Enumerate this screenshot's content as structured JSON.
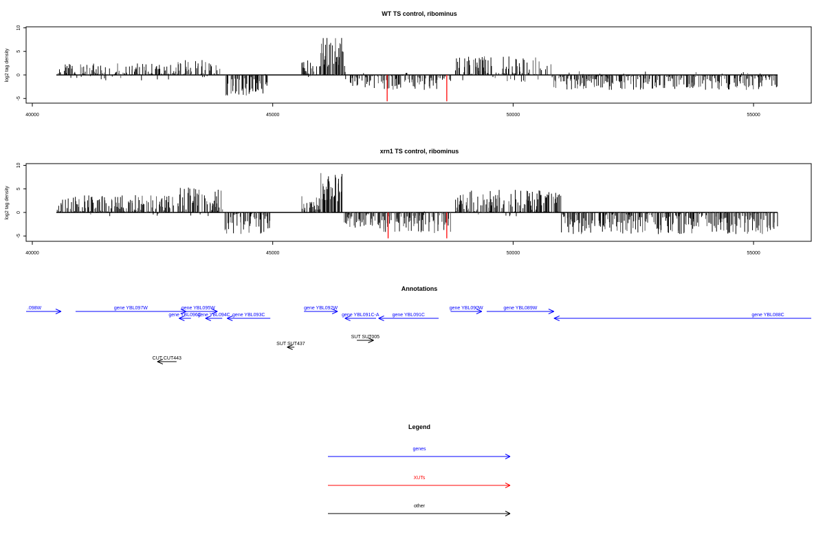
{
  "panels": [
    {
      "title": "WT TS control, ribominus",
      "ylabel": "log2 tag density",
      "yticks": [
        "10",
        "5",
        "0",
        "-5"
      ],
      "xticks": [
        "40000",
        "45000",
        "50000",
        "55000"
      ]
    },
    {
      "title": "xrn1 TS control, ribominus",
      "ylabel": "log2 tag density",
      "yticks": [
        "10",
        "5",
        "0",
        "-5"
      ],
      "xticks": [
        "40000",
        "45000",
        "50000",
        "55000"
      ]
    }
  ],
  "annotations": {
    "title": "Annotations",
    "genes": [
      {
        "label": ".098W",
        "start": 39400,
        "end": 40600,
        "dir": "+"
      },
      {
        "label": "gene YBL097W",
        "start": 40900,
        "end": 43200,
        "dir": "+"
      },
      {
        "label": "gene YBL095W",
        "start": 43050,
        "end": 43850,
        "dir": "+"
      },
      {
        "label": "gene YBL096C",
        "start": 43050,
        "end": 43300,
        "dir": "-"
      },
      {
        "label": "gene YBL094C",
        "start": 43600,
        "end": 43950,
        "dir": "-"
      },
      {
        "label": "gene YBL093C",
        "start": 44050,
        "end": 44950,
        "dir": "-"
      },
      {
        "label": "gene YBL092W",
        "start": 45650,
        "end": 46350,
        "dir": "+"
      },
      {
        "label": "gene YBL091C-A",
        "start": 46500,
        "end": 47150,
        "dir": "-"
      },
      {
        "label": "gene YBL091C",
        "start": 47200,
        "end": 48450,
        "dir": "-"
      },
      {
        "label": "gene YBL090W",
        "start": 48700,
        "end": 49350,
        "dir": "+"
      },
      {
        "label": "gene YBL089W",
        "start": 49450,
        "end": 50850,
        "dir": "+"
      },
      {
        "label": "gene YBL088C",
        "start": 50850,
        "end": 56200,
        "dir": "-"
      }
    ],
    "others": [
      {
        "label": "SUT SUT437",
        "start": 45300,
        "end": 45450,
        "dir": "-"
      },
      {
        "label": "SUT SUT005",
        "start": 46750,
        "end": 47100,
        "dir": "+"
      },
      {
        "label": "CUT CUT443",
        "start": 42600,
        "end": 43000,
        "dir": "-"
      }
    ]
  },
  "legend": {
    "title": "Legend",
    "items": [
      {
        "label": "genes",
        "color": "#0000ff"
      },
      {
        "label": "XUTs",
        "color": "#ff0000"
      },
      {
        "label": "other",
        "color": "#000000"
      }
    ]
  },
  "colors": {
    "genes": "#0000ff",
    "xuts": "#ff0000",
    "other": "#000000",
    "axis": "#000000"
  },
  "chart_data": [
    {
      "type": "bar",
      "title": "WT TS control, ribominus",
      "xlabel": "",
      "ylabel": "log2 tag density",
      "xlim": [
        39900,
        56200
      ],
      "ylim": [
        -6,
        10
      ],
      "grid": false,
      "clusters": [
        {
          "x": [
            40500,
            43000
          ],
          "level": 0.6,
          "amp": 2.3
        },
        {
          "x": [
            43000,
            43900
          ],
          "level": 0.8,
          "amp": 3.0
        },
        {
          "x": [
            44000,
            44900
          ],
          "level": -2.0,
          "amp": 3.0
        },
        {
          "x": [
            45600,
            46000
          ],
          "level": 1.3,
          "amp": 2.5
        },
        {
          "x": [
            46000,
            46500
          ],
          "level": 5.0,
          "amp": 4.0
        },
        {
          "x": [
            46500,
            48700
          ],
          "level": -1.2,
          "amp": 2.5
        },
        {
          "x": [
            48800,
            50800
          ],
          "level": 1.2,
          "amp": 3.5
        },
        {
          "x": [
            50800,
            55500
          ],
          "level": -1.2,
          "amp": 2.5
        }
      ],
      "xut_bars": [
        {
          "x": 47380,
          "value": -5.6
        },
        {
          "x": 48620,
          "value": -5.6
        }
      ]
    },
    {
      "type": "bar",
      "title": "xrn1 TS control, ribominus",
      "xlabel": "",
      "ylabel": "log2 tag density",
      "xlim": [
        39900,
        56200
      ],
      "ylim": [
        -6,
        10
      ],
      "grid": false,
      "clusters": [
        {
          "x": [
            40500,
            43000
          ],
          "level": 1.3,
          "amp": 3.0
        },
        {
          "x": [
            43000,
            44000
          ],
          "level": 2.2,
          "amp": 4.0
        },
        {
          "x": [
            44000,
            44950
          ],
          "level": -2.2,
          "amp": 3.0
        },
        {
          "x": [
            45600,
            46000
          ],
          "level": 1.5,
          "amp": 2.5
        },
        {
          "x": [
            46000,
            46450
          ],
          "level": 5.5,
          "amp": 4.0
        },
        {
          "x": [
            46450,
            47300
          ],
          "level": -1.5,
          "amp": 2.5
        },
        {
          "x": [
            47300,
            48700
          ],
          "level": -2.0,
          "amp": 3.0
        },
        {
          "x": [
            48800,
            51000
          ],
          "level": 2.0,
          "amp": 3.5
        },
        {
          "x": [
            51000,
            55500
          ],
          "level": -2.2,
          "amp": 3.0
        }
      ],
      "xut_bars": [
        {
          "x": 47400,
          "value": -5.5
        },
        {
          "x": 48620,
          "value": -5.5
        }
      ]
    }
  ]
}
